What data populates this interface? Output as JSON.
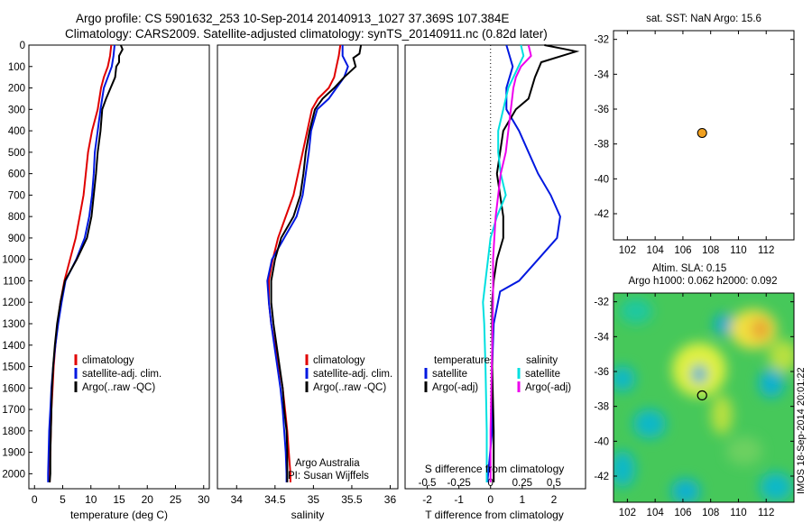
{
  "header": {
    "line1": "Argo profile: CS 5901632_253 10-Sep-2014 20140913_1027 37.369S 107.384E",
    "line2": "Climatology: CARS2009. Satellite-adjusted climatology: synTS_20140911.nc (0.82d later)"
  },
  "colors": {
    "climatology": "#e00000",
    "satellite": "#0018e0",
    "argo": "#000000",
    "sal_satellite": "#00e0e0",
    "sal_argo": "#ee00ee",
    "float": "#f0a020"
  },
  "chart_data": [
    {
      "id": "temperature",
      "type": "line",
      "xlabel": "temperature (deg C)",
      "xlim": [
        -1,
        31
      ],
      "ylim": [
        2070,
        0
      ],
      "xticks": [
        "0",
        "5",
        "10",
        "15",
        "20",
        "25",
        "30"
      ],
      "yticks": [
        "0",
        "100",
        "200",
        "300",
        "400",
        "500",
        "600",
        "700",
        "800",
        "900",
        "1000",
        "1100",
        "1200",
        "1300",
        "1400",
        "1500",
        "1600",
        "1700",
        "1800",
        "1900",
        "2000"
      ],
      "legend": [
        "climatology",
        "satellite-adj. clim.",
        "Argo(..raw -QC)"
      ],
      "series": [
        {
          "name": "climatology",
          "color": "#e00000",
          "points": [
            [
              13.6,
              0
            ],
            [
              13.4,
              50
            ],
            [
              13,
              100
            ],
            [
              12.3,
              150
            ],
            [
              11.8,
              200
            ],
            [
              11.2,
              300
            ],
            [
              10.2,
              400
            ],
            [
              9.5,
              500
            ],
            [
              9.1,
              600
            ],
            [
              8.7,
              700
            ],
            [
              8,
              800
            ],
            [
              7.3,
              900
            ],
            [
              6.3,
              1000
            ],
            [
              5.3,
              1100
            ],
            [
              4.6,
              1200
            ],
            [
              4.1,
              1300
            ],
            [
              3.7,
              1400
            ],
            [
              3.4,
              1500
            ],
            [
              3.2,
              1600
            ],
            [
              3,
              1700
            ],
            [
              2.9,
              1800
            ],
            [
              2.8,
              1900
            ],
            [
              2.7,
              2000
            ],
            [
              2.7,
              2040
            ]
          ]
        },
        {
          "name": "satellite-adj. clim.",
          "color": "#0018e0",
          "points": [
            [
              14.2,
              0
            ],
            [
              14,
              50
            ],
            [
              13.7,
              100
            ],
            [
              13,
              150
            ],
            [
              12.3,
              200
            ],
            [
              11.7,
              300
            ],
            [
              11.2,
              400
            ],
            [
              10.7,
              500
            ],
            [
              10.5,
              600
            ],
            [
              10.2,
              700
            ],
            [
              9.7,
              800
            ],
            [
              8.9,
              900
            ],
            [
              7.4,
              1000
            ],
            [
              5.5,
              1100
            ],
            [
              4.8,
              1200
            ],
            [
              4.2,
              1300
            ],
            [
              3.7,
              1400
            ],
            [
              3.3,
              1500
            ],
            [
              3,
              1600
            ],
            [
              2.8,
              1700
            ],
            [
              2.6,
              1800
            ],
            [
              2.5,
              1900
            ],
            [
              2.4,
              2000
            ],
            [
              2.4,
              2040
            ]
          ]
        },
        {
          "name": "Argo(..raw -QC)",
          "color": "#000000",
          "points": [
            [
              15.3,
              0
            ],
            [
              15.6,
              20
            ],
            [
              15,
              50
            ],
            [
              15,
              80
            ],
            [
              14.5,
              100
            ],
            [
              14.3,
              150
            ],
            [
              13.5,
              200
            ],
            [
              12.7,
              250
            ],
            [
              12,
              300
            ],
            [
              11.7,
              400
            ],
            [
              11.2,
              500
            ],
            [
              10.9,
              600
            ],
            [
              10.5,
              700
            ],
            [
              10.1,
              800
            ],
            [
              9.3,
              900
            ],
            [
              7.5,
              1000
            ],
            [
              5.4,
              1100
            ],
            [
              4.6,
              1200
            ],
            [
              4,
              1300
            ],
            [
              3.6,
              1400
            ],
            [
              3.3,
              1500
            ],
            [
              3.1,
              1600
            ],
            [
              3,
              1700
            ],
            [
              2.9,
              1800
            ],
            [
              2.8,
              1900
            ],
            [
              2.8,
              2000
            ],
            [
              2.7,
              2040
            ]
          ]
        }
      ]
    },
    {
      "id": "salinity",
      "type": "line",
      "xlabel": "salinity",
      "xlim": [
        33.75,
        36.1
      ],
      "ylim": [
        2070,
        0
      ],
      "xticks": [
        "34",
        "34.5",
        "35",
        "35.5",
        "36"
      ],
      "legend": [
        "climatology",
        "satellite-adj. clim.",
        "Argo(..raw -QC)"
      ],
      "annotation": [
        "Argo Australia",
        "PI: Susan Wijffels"
      ],
      "series": [
        {
          "name": "climatology",
          "color": "#e00000",
          "points": [
            [
              35.35,
              0
            ],
            [
              35.33,
              50
            ],
            [
              35.3,
              100
            ],
            [
              35.27,
              150
            ],
            [
              35.2,
              200
            ],
            [
              35.06,
              250
            ],
            [
              34.98,
              300
            ],
            [
              34.92,
              400
            ],
            [
              34.86,
              500
            ],
            [
              34.8,
              600
            ],
            [
              34.74,
              700
            ],
            [
              34.64,
              800
            ],
            [
              34.54,
              900
            ],
            [
              34.47,
              1000
            ],
            [
              34.42,
              1100
            ],
            [
              34.42,
              1200
            ],
            [
              34.45,
              1300
            ],
            [
              34.5,
              1400
            ],
            [
              34.55,
              1500
            ],
            [
              34.6,
              1600
            ],
            [
              34.63,
              1700
            ],
            [
              34.66,
              1800
            ],
            [
              34.68,
              1900
            ],
            [
              34.7,
              2000
            ],
            [
              34.7,
              2040
            ]
          ]
        },
        {
          "name": "satellite-adj. clim.",
          "color": "#0018e0",
          "points": [
            [
              35.38,
              0
            ],
            [
              35.38,
              50
            ],
            [
              35.45,
              100
            ],
            [
              35.4,
              150
            ],
            [
              35.3,
              200
            ],
            [
              35.2,
              250
            ],
            [
              35.05,
              300
            ],
            [
              34.97,
              400
            ],
            [
              34.94,
              500
            ],
            [
              34.9,
              600
            ],
            [
              34.86,
              700
            ],
            [
              34.78,
              800
            ],
            [
              34.62,
              900
            ],
            [
              34.46,
              1000
            ],
            [
              34.4,
              1100
            ],
            [
              34.42,
              1200
            ],
            [
              34.45,
              1300
            ],
            [
              34.49,
              1400
            ],
            [
              34.53,
              1500
            ],
            [
              34.57,
              1600
            ],
            [
              34.6,
              1700
            ],
            [
              34.62,
              1800
            ],
            [
              34.64,
              1900
            ],
            [
              34.65,
              2000
            ],
            [
              34.65,
              2040
            ]
          ]
        },
        {
          "name": "Argo(..raw -QC)",
          "color": "#000000",
          "points": [
            [
              35.62,
              0
            ],
            [
              35.6,
              40
            ],
            [
              35.52,
              60
            ],
            [
              35.55,
              100
            ],
            [
              35.4,
              150
            ],
            [
              35.27,
              200
            ],
            [
              35.12,
              250
            ],
            [
              35.02,
              300
            ],
            [
              34.95,
              400
            ],
            [
              34.9,
              500
            ],
            [
              34.87,
              600
            ],
            [
              34.83,
              700
            ],
            [
              34.74,
              800
            ],
            [
              34.58,
              900
            ],
            [
              34.5,
              1000
            ],
            [
              34.45,
              1100
            ],
            [
              34.45,
              1200
            ],
            [
              34.48,
              1300
            ],
            [
              34.52,
              1400
            ],
            [
              34.56,
              1500
            ],
            [
              34.6,
              1600
            ],
            [
              34.62,
              1700
            ],
            [
              34.65,
              1800
            ],
            [
              34.66,
              1900
            ],
            [
              34.66,
              2000
            ],
            [
              34.66,
              2040
            ]
          ]
        }
      ]
    },
    {
      "id": "difference",
      "type": "line",
      "xlabel": "T difference from climatology",
      "top_xlabel": "S difference from climatology",
      "xlim": [
        -2.7,
        3.0
      ],
      "ylim": [
        2070,
        0
      ],
      "xticks": [
        "-2",
        "-1",
        "0",
        "1",
        "2"
      ],
      "top_xticks": [
        "-0.5",
        "-0.25",
        "0",
        "0.25",
        "0.5"
      ],
      "legend_titles": [
        "temperature",
        "salinity"
      ],
      "legend_left": [
        "satellite",
        "Argo(-adj)"
      ],
      "legend_right": [
        "satellite",
        "Argo(-adj)"
      ],
      "series": [
        {
          "name": "temperature satellite",
          "color": "#0018e0",
          "points": [
            [
              0.5,
              0
            ],
            [
              0.6,
              50
            ],
            [
              0.7,
              100
            ],
            [
              0.6,
              150
            ],
            [
              0.5,
              200
            ],
            [
              0.5,
              300
            ],
            [
              0.9,
              400
            ],
            [
              1.2,
              500
            ],
            [
              1.5,
              600
            ],
            [
              1.9,
              700
            ],
            [
              2.2,
              800
            ],
            [
              2.1,
              900
            ],
            [
              1.5,
              1000
            ],
            [
              0.9,
              1100
            ],
            [
              0.3,
              1150
            ],
            [
              0.1,
              1300
            ],
            [
              0.05,
              1500
            ],
            [
              0.05,
              1800
            ],
            [
              -0.1,
              2040
            ]
          ]
        },
        {
          "name": "temperature Argo(-adj)",
          "color": "#000000",
          "points": [
            [
              1.7,
              0
            ],
            [
              2.4,
              20
            ],
            [
              2.7,
              30
            ],
            [
              1.6,
              80
            ],
            [
              1.4,
              150
            ],
            [
              1.2,
              250
            ],
            [
              0.8,
              300
            ],
            [
              0.4,
              400
            ],
            [
              0.3,
              500
            ],
            [
              0.2,
              600
            ],
            [
              0.3,
              700
            ],
            [
              0.4,
              800
            ],
            [
              0.4,
              900
            ],
            [
              0.2,
              1000
            ],
            [
              0.1,
              1100
            ],
            [
              0.05,
              1200
            ],
            [
              0.05,
              1500
            ],
            [
              0.1,
              1800
            ],
            [
              0.1,
              2040
            ]
          ]
        },
        {
          "name": "salinity satellite",
          "color": "#00e0e0",
          "points": [
            [
              0.24,
              0
            ],
            [
              0.26,
              50
            ],
            [
              0.22,
              100
            ],
            [
              0.18,
              150
            ],
            [
              0.14,
              200
            ],
            [
              0.1,
              300
            ],
            [
              0.06,
              400
            ],
            [
              0.06,
              500
            ],
            [
              0.08,
              600
            ],
            [
              0.12,
              700
            ],
            [
              0.05,
              800
            ],
            [
              0.0,
              900
            ],
            [
              -0.02,
              1000
            ],
            [
              -0.04,
              1100
            ],
            [
              -0.06,
              1200
            ],
            [
              -0.05,
              1300
            ],
            [
              -0.04,
              1500
            ],
            [
              -0.03,
              1800
            ],
            [
              -0.03,
              2040
            ]
          ]
        },
        {
          "name": "salinity Argo(-adj)",
          "color": "#ee00ee",
          "points": [
            [
              0.3,
              0
            ],
            [
              0.32,
              50
            ],
            [
              0.24,
              100
            ],
            [
              0.2,
              150
            ],
            [
              0.18,
              200
            ],
            [
              0.16,
              300
            ],
            [
              0.14,
              400
            ],
            [
              0.12,
              500
            ],
            [
              0.08,
              600
            ],
            [
              0.06,
              700
            ],
            [
              0.04,
              800
            ],
            [
              0.03,
              900
            ],
            [
              0.02,
              1000
            ],
            [
              0.02,
              1200
            ],
            [
              0.01,
              1500
            ],
            [
              0.0,
              1800
            ],
            [
              0.0,
              2040
            ]
          ]
        }
      ]
    },
    {
      "id": "location",
      "type": "scatter",
      "title": "sat. SST: NaN Argo: 15.6",
      "xlim": [
        101,
        114
      ],
      "ylim": [
        -43.5,
        -31.5
      ],
      "xticks": [
        "102",
        "104",
        "106",
        "108",
        "110",
        "112"
      ],
      "yticks": [
        "-32",
        "-34",
        "-36",
        "-38",
        "-40",
        "-42"
      ],
      "points": [
        [
          107.384,
          -37.369
        ]
      ]
    },
    {
      "id": "sla_map",
      "type": "heatmap",
      "title_line1": "Altim. SLA: 0.15",
      "title_line2": "Argo h1000: 0.062 h2000: 0.092",
      "xlim": [
        101,
        114
      ],
      "ylim": [
        -43.5,
        -31.5
      ],
      "xticks": [
        "102",
        "104",
        "106",
        "108",
        "110",
        "112"
      ],
      "yticks": [
        "-32",
        "-34",
        "-36",
        "-38",
        "-40",
        "-42"
      ],
      "points": [
        [
          107.384,
          -37.369
        ]
      ],
      "side_label": "IMOS 18-Sep-2014 20:01:22"
    }
  ]
}
